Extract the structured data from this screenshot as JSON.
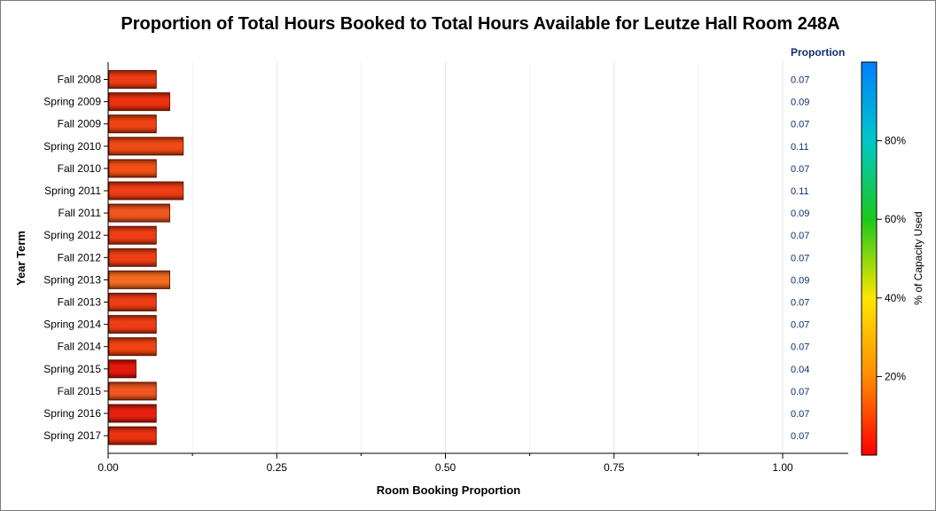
{
  "chart_data": {
    "type": "bar",
    "orientation": "horizontal",
    "title": "Proportion of Total Hours Booked to Total Hours Available for Leutze Hall Room 248A",
    "xlabel": "Room Booking Proportion",
    "ylabel": "Year Term",
    "xlim": [
      0,
      1.0
    ],
    "xticks": [
      "0.00",
      "0.25",
      "0.50",
      "0.75",
      "1.00"
    ],
    "grid": "vertical",
    "value_column_header": "Proportion",
    "categories": [
      "Fall 2008",
      "Spring 2009",
      "Fall 2009",
      "Spring 2010",
      "Fall 2010",
      "Spring 2011",
      "Fall 2011",
      "Spring 2012",
      "Fall 2012",
      "Spring 2013",
      "Fall 2013",
      "Spring 2014",
      "Fall 2014",
      "Spring 2015",
      "Fall 2015",
      "Spring 2016",
      "Spring 2017"
    ],
    "values": [
      0.07,
      0.09,
      0.07,
      0.11,
      0.07,
      0.11,
      0.09,
      0.07,
      0.07,
      0.09,
      0.07,
      0.07,
      0.07,
      0.04,
      0.07,
      0.07,
      0.07
    ],
    "value_labels": [
      "0.07",
      "0.09",
      "0.07",
      "0.11",
      "0.07",
      "0.11",
      "0.09",
      "0.07",
      "0.07",
      "0.09",
      "0.07",
      "0.07",
      "0.07",
      "0.04",
      "0.07",
      "0.07",
      "0.07"
    ],
    "bar_colors": [
      "#f03a10",
      "#ee2e0c",
      "#f2400f",
      "#f24712",
      "#f44d10",
      "#f03a10",
      "#f2531a",
      "#f03a10",
      "#f03a10",
      "#f56a1c",
      "#f03a10",
      "#f03a10",
      "#f2400f",
      "#e81408",
      "#f2531a",
      "#e81c0a",
      "#ee2e0c"
    ],
    "colorbar": {
      "title": "% of Capacity Used",
      "ticks": [
        "20%",
        "40%",
        "60%",
        "80%"
      ],
      "tick_values": [
        20,
        40,
        60,
        80
      ],
      "range": [
        0,
        100
      ],
      "gradient": [
        "#ff0000",
        "#ff8c00",
        "#ffe600",
        "#1cc81c",
        "#00c8c8",
        "#007fff"
      ]
    }
  }
}
